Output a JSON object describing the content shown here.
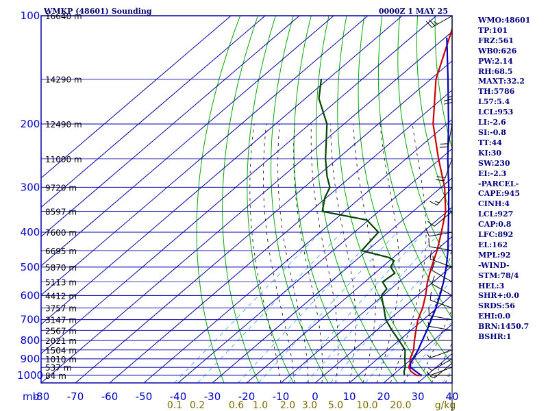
{
  "header": {
    "station_title": "WMKP (48601) Sounding",
    "valid_time": "0000Z  1 MAY 25"
  },
  "chart_data": {
    "type": "line",
    "chart_kind": "skew-T log-P sounding",
    "title": "WMKP (48601) Sounding",
    "valid_time": "0000Z  1 MAY 25",
    "x_axis": {
      "unit_label": "mb",
      "ticks": [
        -80,
        -70,
        -60,
        -50,
        -40,
        -30,
        -20,
        -10,
        0,
        10,
        20,
        30,
        40
      ],
      "tick_labels": [
        "-80",
        "-70",
        "-60",
        "-50",
        "-40",
        "-30",
        "-20",
        "-10",
        "0",
        "10",
        "20",
        "30",
        "40"
      ],
      "range": [
        -80,
        40
      ],
      "units": "°C"
    },
    "y_axis": {
      "scale": "log",
      "range": [
        100,
        1050
      ],
      "ticks": [
        100,
        200,
        300,
        400,
        500,
        600,
        700,
        800,
        900,
        1000
      ],
      "tick_labels": [
        "100",
        "200",
        "300",
        "400",
        "500",
        "600",
        "700",
        "800",
        "900",
        "1000"
      ],
      "units": "mb"
    },
    "mixing_ratio_labels": [
      "0.1",
      "0.2",
      "0.6",
      "1.0",
      "2.0",
      "3.0",
      "5.0",
      "10.0",
      "20.0",
      "g/kg"
    ],
    "height_labels": [
      {
        "p": 100,
        "label": "16640 m"
      },
      {
        "p": 150,
        "label": "14290 m"
      },
      {
        "p": 200,
        "label": "12490 m"
      },
      {
        "p": 250,
        "label": "11000 m"
      },
      {
        "p": 300,
        "label": "9720 m"
      },
      {
        "p": 350,
        "label": "8597 m"
      },
      {
        "p": 400,
        "label": "7600 m"
      },
      {
        "p": 450,
        "label": "6695 m"
      },
      {
        "p": 500,
        "label": "5870 m"
      },
      {
        "p": 550,
        "label": "5113 m"
      },
      {
        "p": 600,
        "label": "4412 m"
      },
      {
        "p": 650,
        "label": "3757 m"
      },
      {
        "p": 700,
        "label": "3147 m"
      },
      {
        "p": 750,
        "label": "2567 m"
      },
      {
        "p": 800,
        "label": "2021 m"
      },
      {
        "p": 850,
        "label": "1504 m"
      },
      {
        "p": 900,
        "label": "1010 m"
      },
      {
        "p": 950,
        "label": "537 m"
      },
      {
        "p": 1000,
        "label": "84 m"
      }
    ],
    "series": [
      {
        "key": "temperature",
        "color": "#cc0000",
        "points": [
          [
            1002,
            28
          ],
          [
            1000,
            27
          ],
          [
            975,
            24
          ],
          [
            950,
            22
          ],
          [
            925,
            21
          ],
          [
            900,
            19.5
          ],
          [
            850,
            17.5
          ],
          [
            800,
            14.5
          ],
          [
            750,
            11.5
          ],
          [
            700,
            8.4
          ],
          [
            650,
            5.8
          ],
          [
            600,
            2.4
          ],
          [
            550,
            -1.7
          ],
          [
            500,
            -5.6
          ],
          [
            450,
            -9.6
          ],
          [
            400,
            -14.6
          ],
          [
            350,
            -20.5
          ],
          [
            300,
            -29
          ],
          [
            250,
            -40.5
          ],
          [
            200,
            -54
          ],
          [
            150,
            -68.5
          ],
          [
            103,
            -83
          ]
        ]
      },
      {
        "key": "parcel",
        "color": "#0000bb",
        "points": [
          [
            1002,
            28.5
          ],
          [
            950,
            22.5
          ],
          [
            927,
            21.2
          ],
          [
            900,
            20.4
          ],
          [
            850,
            18.8
          ],
          [
            800,
            16.8
          ],
          [
            750,
            14.7
          ],
          [
            700,
            12.3
          ],
          [
            650,
            9.7
          ],
          [
            600,
            6.6
          ],
          [
            550,
            3
          ],
          [
            500,
            -1.3
          ],
          [
            450,
            -6.4
          ],
          [
            400,
            -12.6
          ],
          [
            350,
            -19.6
          ],
          [
            300,
            -27.8
          ],
          [
            250,
            -37.8
          ],
          [
            200,
            -49.5
          ],
          [
            150,
            -65
          ],
          [
            115,
            -79.5
          ]
        ]
      },
      {
        "key": "dewpoint",
        "color": "#004400",
        "points": [
          [
            1000,
            23.5
          ],
          [
            975,
            22
          ],
          [
            950,
            21
          ],
          [
            925,
            19.5
          ],
          [
            900,
            18
          ],
          [
            850,
            15
          ],
          [
            800,
            10
          ],
          [
            750,
            4.5
          ],
          [
            700,
            -1
          ],
          [
            650,
            -5.5
          ],
          [
            600,
            -10.5
          ],
          [
            575,
            -11.2
          ],
          [
            550,
            -14.8
          ],
          [
            520,
            -14.2
          ],
          [
            500,
            -17.5
          ],
          [
            480,
            -18.7
          ],
          [
            470,
            -21.4
          ],
          [
            450,
            -31.6
          ],
          [
            400,
            -33
          ],
          [
            370,
            -40.5
          ],
          [
            350,
            -56.5
          ],
          [
            320,
            -60.5
          ],
          [
            300,
            -62.5
          ],
          [
            280,
            -67
          ],
          [
            250,
            -73.5
          ],
          [
            200,
            -85
          ],
          [
            170,
            -96
          ],
          [
            150,
            -102
          ]
        ]
      }
    ]
  },
  "indices": [
    "WMO:48601",
    "TP:101",
    "FRZ:561",
    "WB0:626",
    "PW:2.14",
    "RH:68.5",
    "MAXT:32.2",
    "TH:5786",
    "L57:5.4",
    "LCL:953",
    "LI:-2.6",
    "SI:-0.8",
    "TT:44",
    "KI:30",
    "SW:230",
    "EI:-2.3",
    "-PARCEL-",
    "CAPE:945",
    "CINH:4",
    "LCL:927",
    "CAP:0.8",
    "LFC:892",
    "EL:162",
    "MPL:92",
    "-WIND-",
    "STM:78/4",
    "HEL:3",
    "SHR+:0.0",
    "SRDS:56",
    "EHI:0.0",
    "BRN:1450.7",
    "BSHR:1"
  ],
  "wind_profile": [
    {
      "p": 1000,
      "dir": 270,
      "kt": 5
    },
    {
      "p": 950,
      "dir": 250,
      "kt": 5
    },
    {
      "p": 925,
      "dir": 230,
      "kt": 5
    },
    {
      "p": 900,
      "dir": 240,
      "kt": 5
    },
    {
      "p": 850,
      "dir": 250,
      "kt": 5
    },
    {
      "p": 800,
      "dir": 270,
      "kt": 5
    },
    {
      "p": 750,
      "dir": 280,
      "kt": 5
    },
    {
      "p": 700,
      "dir": 280,
      "kt": 10
    },
    {
      "p": 650,
      "dir": 290,
      "kt": 10
    },
    {
      "p": 600,
      "dir": 300,
      "kt": 10
    },
    {
      "p": 550,
      "dir": 300,
      "kt": 10
    },
    {
      "p": 500,
      "dir": 290,
      "kt": 15
    },
    {
      "p": 450,
      "dir": 280,
      "kt": 10
    },
    {
      "p": 400,
      "dir": 260,
      "kt": 10
    },
    {
      "p": 350,
      "dir": 230,
      "kt": 10
    },
    {
      "p": 300,
      "dir": 220,
      "kt": 15
    },
    {
      "p": 250,
      "dir": 200,
      "kt": 20
    },
    {
      "p": 200,
      "dir": 190,
      "kt": 20
    },
    {
      "p": 150,
      "dir": 180,
      "kt": 25
    },
    {
      "p": 100,
      "dir": 240,
      "kt": 25
    }
  ],
  "colors": {
    "frame": "#0000aa",
    "isobar": "#0000aa",
    "isotherm": "#0000aa",
    "dry_adiabat": "#00aa00",
    "moist_adiabat": "#000000",
    "mixing_ratio": "#3399ff",
    "temperature": "#cc0000",
    "dewpoint": "#004400",
    "parcel": "#0000bb",
    "wind_barb": "#000000"
  }
}
